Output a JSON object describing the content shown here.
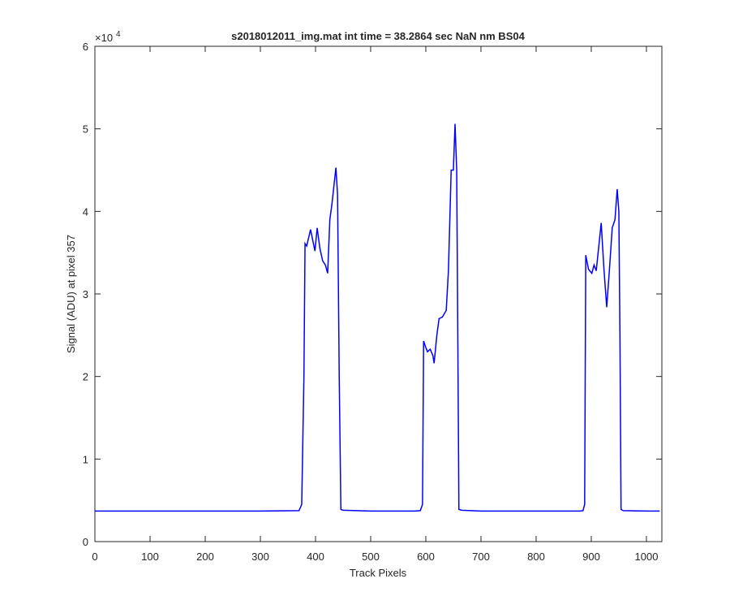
{
  "chart_data": {
    "type": "line",
    "title": "s2018012011_img.mat int time = 38.2864 sec  NaN nm BS04",
    "x_label": "Track Pixels",
    "y_label": "Signal (ADU) at pixel 357",
    "y_exponent_base": "×10",
    "y_exponent_power": "4",
    "color": "#0000ff",
    "x": [
      0,
      100,
      200,
      300,
      370,
      375,
      379,
      381,
      384,
      391,
      395,
      399,
      403,
      408,
      413,
      418,
      422,
      426,
      430,
      437,
      440,
      443,
      446,
      450,
      500,
      580,
      590,
      594,
      596,
      600,
      603,
      608,
      613,
      615,
      620,
      624,
      630,
      637,
      641,
      646,
      650,
      653,
      656,
      658,
      660,
      665,
      700,
      800,
      880,
      885,
      888,
      890,
      895,
      901,
      905,
      909,
      914,
      918,
      923,
      928,
      933,
      938,
      943,
      947,
      950,
      952,
      954,
      958,
      1000,
      1024
    ],
    "values": [
      3700,
      3700,
      3700,
      3700,
      3750,
      4500,
      20000,
      36100,
      35800,
      37800,
      36500,
      35200,
      38000,
      35500,
      34000,
      33500,
      32500,
      39000,
      41000,
      45300,
      42000,
      20000,
      3900,
      3800,
      3700,
      3700,
      3750,
      4500,
      24300,
      23500,
      23000,
      23300,
      22500,
      21600,
      25000,
      27000,
      27200,
      28000,
      32800,
      45000,
      45000,
      50600,
      45000,
      25000,
      3900,
      3800,
      3700,
      3700,
      3700,
      3750,
      4500,
      34700,
      33000,
      32500,
      33500,
      32800,
      36000,
      38600,
      33000,
      28400,
      33000,
      38000,
      39000,
      42700,
      40000,
      25000,
      3900,
      3750,
      3700,
      3700
    ],
    "xlim": [
      0,
      1028
    ],
    "xticks": [
      0,
      100,
      200,
      300,
      400,
      500,
      600,
      700,
      800,
      900,
      1000
    ],
    "ylim": [
      0,
      60000
    ],
    "yticks": [
      0,
      {
        "value": 10000,
        "label": "1"
      },
      {
        "value": 20000,
        "label": "2"
      },
      {
        "value": 30000,
        "label": "3"
      },
      {
        "value": 40000,
        "label": "4"
      },
      {
        "value": 50000,
        "label": "5"
      },
      {
        "value": 60000,
        "label": "6"
      }
    ],
    "grid": false
  }
}
